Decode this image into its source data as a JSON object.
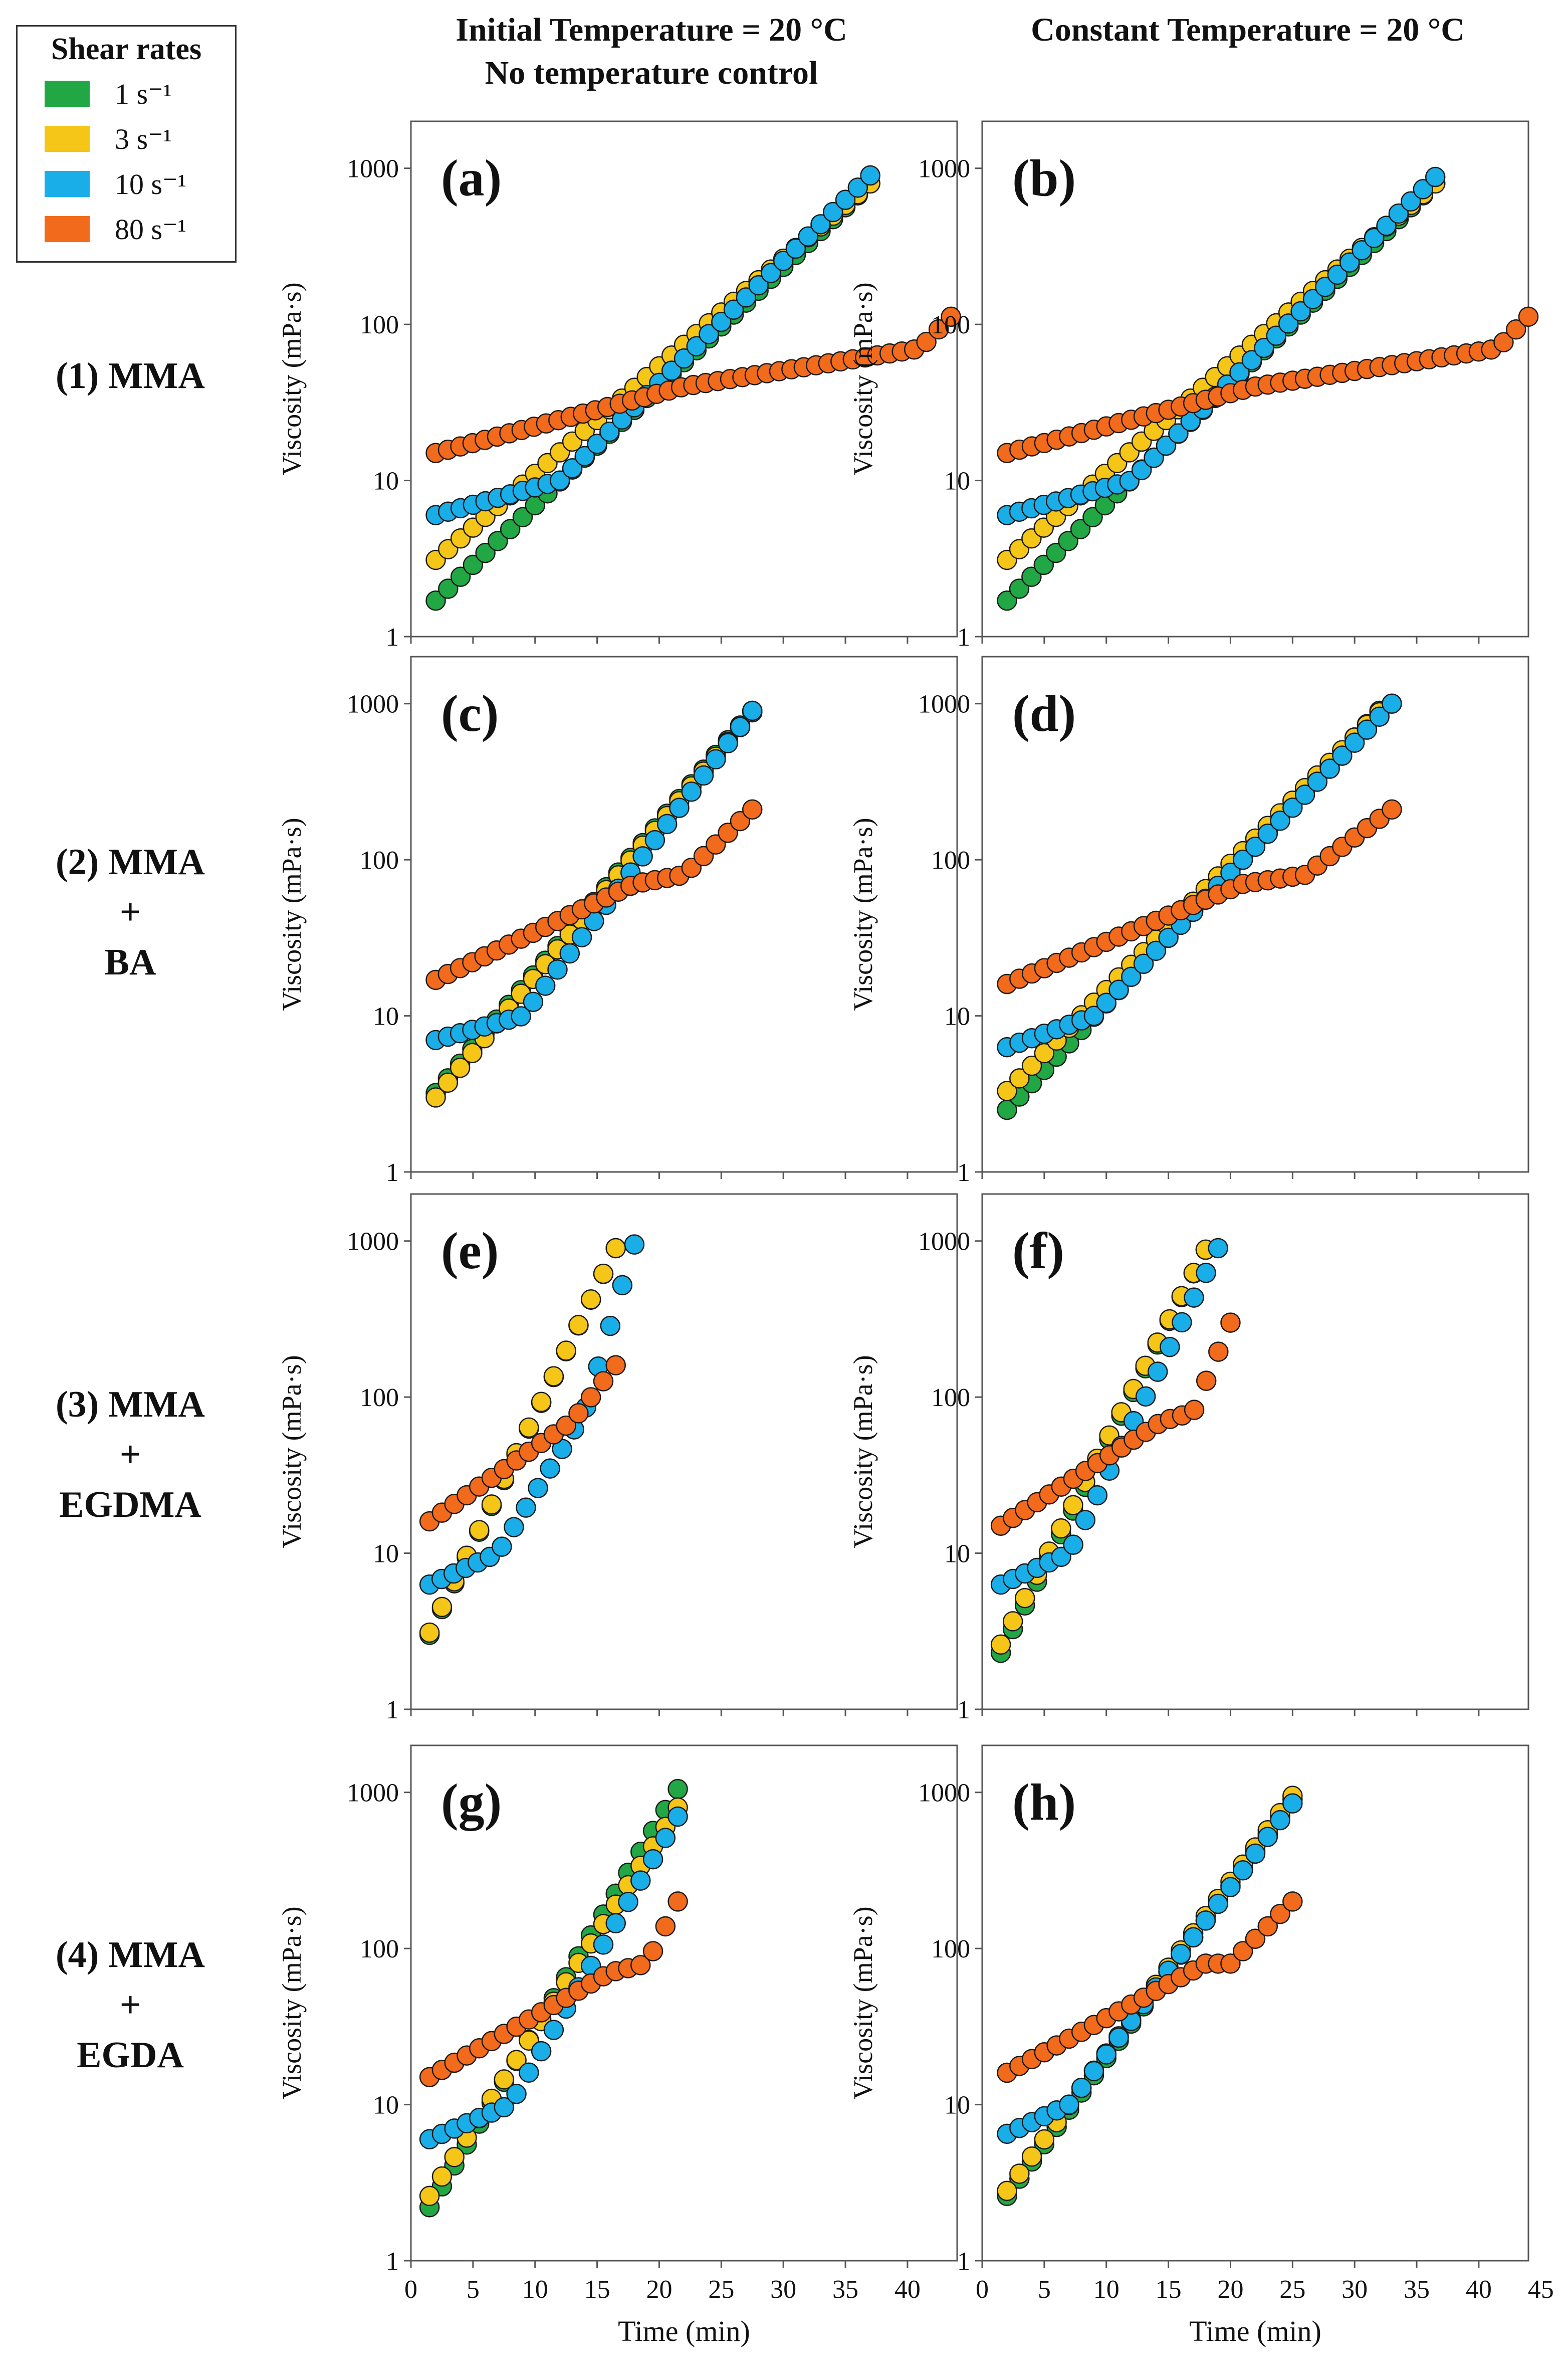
{
  "legend": {
    "title": "Shear rates",
    "items": [
      {
        "label": "1 s⁻¹",
        "color": "#22a745"
      },
      {
        "label": "3 s⁻¹",
        "color": "#f5c518"
      },
      {
        "label": "10 s⁻¹",
        "color": "#1aaee8"
      },
      {
        "label": "80 s⁻¹",
        "color": "#f26a1b"
      }
    ]
  },
  "column_headers": {
    "left_line1": "Initial Temperature = 20 °C",
    "left_line2": "No temperature control",
    "right_line1": "Constant Temperature = 20 °C"
  },
  "row_labels": [
    {
      "lines": [
        "(1) MMA"
      ]
    },
    {
      "lines": [
        "(2) MMA",
        "+",
        "BA"
      ]
    },
    {
      "lines": [
        "(3) MMA",
        "+",
        "EGDMA"
      ]
    },
    {
      "lines": [
        "(4) MMA",
        "+",
        "EGDA"
      ]
    }
  ],
  "axes": {
    "ylabel": "Viscosity (mPa·s)",
    "xlabel": "Time (min)",
    "y_ticks": [
      "1",
      "10",
      "100",
      "1000"
    ],
    "x_ticks_left": [
      "0",
      "5",
      "10",
      "15",
      "20",
      "25",
      "30",
      "35",
      "40"
    ],
    "x_ticks_right": [
      "0",
      "5",
      "10",
      "15",
      "20",
      "25",
      "30",
      "35",
      "40",
      "45"
    ]
  },
  "chart_data": [
    {
      "panel": "(a)",
      "type": "scatter",
      "yscale": "log",
      "ylim": [
        1,
        2000
      ],
      "xlim": [
        0,
        44
      ],
      "xlabel": "Time (min)",
      "ylabel": "Viscosity (mPa·s)",
      "series": [
        {
          "name": "1 s⁻¹",
          "x0": 2,
          "x1": 37,
          "y0": 1.7,
          "y1": 800
        },
        {
          "name": "3 s⁻¹",
          "x0": 2,
          "x1": 37,
          "y0": 3.1,
          "y1": 800
        },
        {
          "name": "10 s⁻¹",
          "knots": [
            [
              2,
              6
            ],
            [
              12,
              10
            ],
            [
              37,
              900
            ]
          ]
        },
        {
          "name": "80 s⁻¹",
          "knots": [
            [
              2,
              15
            ],
            [
              22,
              40
            ],
            [
              41,
              70
            ],
            [
              43.5,
              112
            ]
          ]
        }
      ]
    },
    {
      "panel": "(b)",
      "type": "scatter",
      "yscale": "log",
      "ylim": [
        1,
        2000
      ],
      "xlim": [
        0,
        44
      ],
      "series": [
        {
          "name": "1 s⁻¹",
          "x0": 2,
          "x1": 36.5,
          "y0": 1.7,
          "y1": 800
        },
        {
          "name": "3 s⁻¹",
          "x0": 2,
          "x1": 36.5,
          "y0": 3.1,
          "y1": 800
        },
        {
          "name": "10 s⁻¹",
          "knots": [
            [
              2,
              6
            ],
            [
              12,
              10
            ],
            [
              36.5,
              880
            ]
          ]
        },
        {
          "name": "80 s⁻¹",
          "knots": [
            [
              2,
              15
            ],
            [
              22,
              40
            ],
            [
              41.5,
              70
            ],
            [
              44,
              112
            ]
          ]
        }
      ]
    },
    {
      "panel": "(c)",
      "type": "scatter",
      "yscale": "log",
      "ylim": [
        1,
        2000
      ],
      "xlim": [
        0,
        44
      ],
      "series": [
        {
          "name": "1 s⁻¹",
          "x0": 2,
          "x1": 27.5,
          "y0": 3.2,
          "y1": 900
        },
        {
          "name": "3 s⁻¹",
          "x0": 2,
          "x1": 27.5,
          "y0": 3.0,
          "y1": 880
        },
        {
          "name": "10 s⁻¹",
          "knots": [
            [
              2,
              7
            ],
            [
              9,
              10
            ],
            [
              27.5,
              900
            ]
          ]
        },
        {
          "name": "80 s⁻¹",
          "knots": [
            [
              2,
              17
            ],
            [
              18,
              70
            ],
            [
              22,
              80
            ],
            [
              27.5,
              210
            ]
          ]
        }
      ]
    },
    {
      "panel": "(d)",
      "type": "scatter",
      "yscale": "log",
      "ylim": [
        1,
        2000
      ],
      "xlim": [
        0,
        44
      ],
      "series": [
        {
          "name": "1 s⁻¹",
          "x0": 2,
          "x1": 32,
          "y0": 2.5,
          "y1": 900
        },
        {
          "name": "3 s⁻¹",
          "x0": 2,
          "x1": 32,
          "y0": 3.3,
          "y1": 880
        },
        {
          "name": "10 s⁻¹",
          "knots": [
            [
              2,
              6.3
            ],
            [
              9,
              10
            ],
            [
              33,
              1000
            ]
          ]
        },
        {
          "name": "80 s⁻¹",
          "knots": [
            [
              2,
              16
            ],
            [
              21,
              70
            ],
            [
              26,
              80
            ],
            [
              33,
              210
            ]
          ]
        }
      ]
    },
    {
      "panel": "(e)",
      "type": "scatter",
      "yscale": "log",
      "ylim": [
        1,
        2000
      ],
      "xlim": [
        0,
        44
      ],
      "series": [
        {
          "name": "1 s⁻¹",
          "x0": 1.5,
          "x1": 16.5,
          "y0": 3.0,
          "y1": 900
        },
        {
          "name": "3 s⁻¹",
          "x0": 1.5,
          "x1": 16.5,
          "y0": 3.1,
          "y1": 900
        },
        {
          "name": "10 s⁻¹",
          "knots": [
            [
              1.5,
              6.3
            ],
            [
              7,
              10
            ],
            [
              14,
              80
            ],
            [
              18,
              950
            ]
          ]
        },
        {
          "name": "80 s⁻¹",
          "knots": [
            [
              1.5,
              16
            ],
            [
              13,
              70
            ],
            [
              16.5,
              160
            ]
          ]
        }
      ]
    },
    {
      "panel": "(f)",
      "type": "scatter",
      "yscale": "log",
      "ylim": [
        1,
        2000
      ],
      "xlim": [
        0,
        44
      ],
      "series": [
        {
          "name": "1 s⁻¹",
          "x0": 1.5,
          "x1": 18,
          "y0": 2.3,
          "y1": 880
        },
        {
          "name": "3 s⁻¹",
          "x0": 1.5,
          "x1": 18,
          "y0": 2.6,
          "y1": 880
        },
        {
          "name": "10 s⁻¹",
          "knots": [
            [
              1.5,
              6.3
            ],
            [
              7,
              10
            ],
            [
              19,
              900
            ]
          ]
        },
        {
          "name": "80 s⁻¹",
          "knots": [
            [
              1.5,
              15
            ],
            [
              14.5,
              70
            ],
            [
              17,
              80
            ],
            [
              20,
              300
            ]
          ]
        }
      ]
    },
    {
      "panel": "(g)",
      "type": "scatter",
      "yscale": "log",
      "ylim": [
        1,
        2000
      ],
      "xlim": [
        0,
        44
      ],
      "series": [
        {
          "name": "1 s⁻¹",
          "x0": 1.5,
          "x1": 21.5,
          "y0": 2.2,
          "y1": 1050
        },
        {
          "name": "3 s⁻¹",
          "x0": 1.5,
          "x1": 21.5,
          "y0": 2.6,
          "y1": 800
        },
        {
          "name": "10 s⁻¹",
          "knots": [
            [
              1.5,
              6
            ],
            [
              8,
              10
            ],
            [
              21.5,
              700
            ]
          ]
        },
        {
          "name": "80 s⁻¹",
          "knots": [
            [
              1.5,
              15
            ],
            [
              16,
              70
            ],
            [
              19,
              80
            ],
            [
              21.5,
              200
            ]
          ]
        }
      ]
    },
    {
      "panel": "(h)",
      "type": "scatter",
      "yscale": "log",
      "ylim": [
        1,
        2000
      ],
      "xlim": [
        0,
        44
      ],
      "series": [
        {
          "name": "1 s⁻¹",
          "x0": 2,
          "x1": 25,
          "y0": 2.6,
          "y1": 900
        },
        {
          "name": "3 s⁻¹",
          "x0": 2,
          "x1": 25,
          "y0": 2.8,
          "y1": 950
        },
        {
          "name": "10 s⁻¹",
          "knots": [
            [
              2,
              6.5
            ],
            [
              7,
              10
            ],
            [
              25,
              850
            ]
          ]
        },
        {
          "name": "80 s⁻¹",
          "knots": [
            [
              2,
              16
            ],
            [
              18,
              80
            ],
            [
              20,
              80
            ],
            [
              25,
              200
            ]
          ]
        }
      ]
    }
  ]
}
